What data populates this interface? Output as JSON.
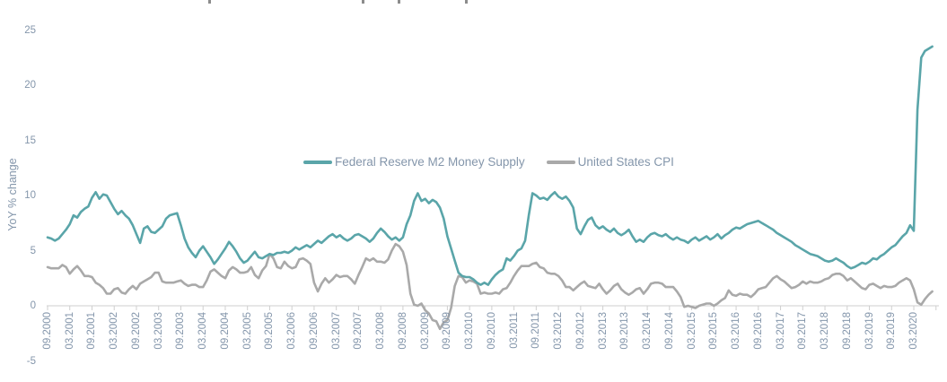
{
  "cropped_title_fragments_x": [
    232,
    403,
    443,
    518
  ],
  "colors": {
    "m2_line": "#5aa5a9",
    "cpi_line": "#a9a9a9",
    "axis_line": "#cfcfcf",
    "label_text": "#8496ab"
  },
  "chart_data": {
    "type": "line",
    "title": "",
    "xlabel": "",
    "ylabel": "YoY % change",
    "ylim": [
      -5,
      25
    ],
    "y_ticks": [
      25,
      20,
      15,
      10,
      5,
      0,
      -5
    ],
    "grid": false,
    "legend_position": "inside-center",
    "x_frequency": "monthly",
    "x_start": "09.2000",
    "x_end": "08.2020",
    "x_tick_every_months": 6,
    "x_tick_labels": [
      "09.2000",
      "03.2001",
      "09.2001",
      "03.2002",
      "09.2002",
      "03.2003",
      "09.2003",
      "03.2004",
      "09.2004",
      "03.2005",
      "09.2005",
      "03.2006",
      "09.2006",
      "03.2007",
      "09.2007",
      "03.2008",
      "09.2008",
      "03.2009",
      "09.2009",
      "03.2010",
      "09.2010",
      "03.2011",
      "09.2011",
      "03.2012",
      "09.2012",
      "03.2013",
      "09.2013",
      "03.2014",
      "09.2014",
      "03.2015",
      "09.2015",
      "03.2016",
      "09.2016",
      "03.2017",
      "09.2017",
      "03.2018",
      "09.2018",
      "03.2019",
      "09.2019",
      "03.2020"
    ],
    "series": [
      {
        "name": "Federal Reserve M2 Money Supply",
        "color": "#5aa5a9",
        "values": [
          6.2,
          6.1,
          5.9,
          6.1,
          6.5,
          6.9,
          7.4,
          8.2,
          8.0,
          8.5,
          8.8,
          9.0,
          9.8,
          10.3,
          9.7,
          10.1,
          10.0,
          9.4,
          8.8,
          8.3,
          8.6,
          8.2,
          7.9,
          7.3,
          6.5,
          5.7,
          7.0,
          7.2,
          6.7,
          6.6,
          6.9,
          7.2,
          7.9,
          8.2,
          8.3,
          8.4,
          7.3,
          6.1,
          5.3,
          4.8,
          4.4,
          5.0,
          5.4,
          4.9,
          4.4,
          3.8,
          4.2,
          4.7,
          5.2,
          5.8,
          5.4,
          4.9,
          4.3,
          3.9,
          4.1,
          4.5,
          4.9,
          4.4,
          4.3,
          4.5,
          4.7,
          4.6,
          4.8,
          4.8,
          4.9,
          4.8,
          5.0,
          5.3,
          5.1,
          5.3,
          5.5,
          5.3,
          5.6,
          5.9,
          5.7,
          6.0,
          6.3,
          6.5,
          6.2,
          6.4,
          6.1,
          5.9,
          6.1,
          6.4,
          6.5,
          6.3,
          6.1,
          5.8,
          6.1,
          6.6,
          7.0,
          6.7,
          6.3,
          6.0,
          6.2,
          5.9,
          6.2,
          7.4,
          8.2,
          9.5,
          10.2,
          9.5,
          9.7,
          9.3,
          9.6,
          9.4,
          8.9,
          7.9,
          6.3,
          5.2,
          4.1,
          3.0,
          2.7,
          2.6,
          2.6,
          2.4,
          2.1,
          1.9,
          2.1,
          1.9,
          2.4,
          2.8,
          3.1,
          3.3,
          4.3,
          4.1,
          4.5,
          5.0,
          5.2,
          5.9,
          8.2,
          10.2,
          10.0,
          9.7,
          9.8,
          9.6,
          10.0,
          10.3,
          9.9,
          9.7,
          9.9,
          9.5,
          8.9,
          7.0,
          6.5,
          7.2,
          7.8,
          8.0,
          7.3,
          7.0,
          7.2,
          6.9,
          6.7,
          7.0,
          6.6,
          6.4,
          6.6,
          6.9,
          6.3,
          5.8,
          6.0,
          5.8,
          6.2,
          6.5,
          6.6,
          6.4,
          6.3,
          6.5,
          6.2,
          6.0,
          6.2,
          6.0,
          5.9,
          5.7,
          6.0,
          6.2,
          5.9,
          6.1,
          6.3,
          6.0,
          6.2,
          6.5,
          6.1,
          6.4,
          6.6,
          6.9,
          7.1,
          7.0,
          7.2,
          7.4,
          7.5,
          7.6,
          7.7,
          7.5,
          7.3,
          7.1,
          6.9,
          6.6,
          6.4,
          6.2,
          6.0,
          5.8,
          5.5,
          5.3,
          5.1,
          4.9,
          4.7,
          4.6,
          4.5,
          4.3,
          4.1,
          4.0,
          4.1,
          4.3,
          4.1,
          3.9,
          3.6,
          3.4,
          3.5,
          3.7,
          3.9,
          3.8,
          4.0,
          4.3,
          4.2,
          4.5,
          4.7,
          5.0,
          5.3,
          5.5,
          5.9,
          6.3,
          6.6,
          7.3,
          6.8,
          17.8,
          22.5,
          23.1,
          23.3,
          23.5
        ]
      },
      {
        "name": "United States CPI",
        "color": "#a9a9a9",
        "values": [
          3.5,
          3.4,
          3.4,
          3.4,
          3.7,
          3.5,
          2.9,
          3.3,
          3.6,
          3.2,
          2.7,
          2.7,
          2.6,
          2.1,
          1.9,
          1.6,
          1.1,
          1.1,
          1.5,
          1.6,
          1.2,
          1.1,
          1.5,
          1.8,
          1.5,
          2.0,
          2.2,
          2.4,
          2.6,
          3.0,
          3.0,
          2.2,
          2.1,
          2.1,
          2.1,
          2.2,
          2.3,
          2.0,
          1.8,
          1.9,
          1.9,
          1.7,
          1.7,
          2.3,
          3.1,
          3.3,
          3.0,
          2.7,
          2.5,
          3.2,
          3.5,
          3.3,
          3.0,
          3.0,
          3.1,
          3.5,
          2.8,
          2.5,
          3.2,
          3.6,
          4.7,
          4.3,
          3.5,
          3.4,
          4.0,
          3.6,
          3.4,
          3.5,
          4.2,
          4.3,
          4.1,
          3.8,
          2.1,
          1.3,
          2.0,
          2.5,
          2.1,
          2.4,
          2.8,
          2.6,
          2.7,
          2.7,
          2.4,
          2.0,
          2.8,
          3.5,
          4.3,
          4.1,
          4.3,
          4.0,
          4.0,
          3.9,
          4.2,
          5.0,
          5.6,
          5.4,
          4.9,
          3.7,
          1.1,
          0.1,
          0.0,
          0.2,
          -0.4,
          -0.7,
          -1.3,
          -1.4,
          -2.1,
          -1.5,
          -1.3,
          -0.2,
          1.8,
          2.7,
          2.6,
          2.1,
          2.3,
          2.2,
          2.0,
          1.1,
          1.2,
          1.1,
          1.1,
          1.2,
          1.1,
          1.5,
          1.6,
          2.1,
          2.7,
          3.2,
          3.6,
          3.6,
          3.6,
          3.8,
          3.9,
          3.5,
          3.4,
          3.0,
          2.9,
          2.9,
          2.7,
          2.3,
          1.7,
          1.7,
          1.4,
          1.7,
          2.0,
          2.2,
          1.8,
          1.7,
          1.6,
          2.0,
          1.5,
          1.1,
          1.4,
          1.8,
          2.0,
          1.5,
          1.2,
          1.0,
          1.2,
          1.5,
          1.6,
          1.1,
          1.5,
          2.0,
          2.1,
          2.1,
          2.0,
          1.7,
          1.7,
          1.7,
          1.3,
          0.8,
          -0.1,
          0.0,
          -0.1,
          -0.2,
          0.0,
          0.1,
          0.2,
          0.2,
          0.0,
          0.2,
          0.5,
          0.7,
          1.4,
          1.0,
          0.9,
          1.1,
          1.0,
          1.0,
          0.8,
          1.1,
          1.5,
          1.6,
          1.7,
          2.1,
          2.5,
          2.7,
          2.4,
          2.2,
          1.9,
          1.6,
          1.7,
          1.9,
          2.2,
          2.0,
          2.2,
          2.1,
          2.1,
          2.2,
          2.4,
          2.5,
          2.8,
          2.9,
          2.9,
          2.7,
          2.3,
          2.5,
          2.2,
          1.9,
          1.6,
          1.5,
          1.9,
          2.0,
          1.8,
          1.6,
          1.8,
          1.7,
          1.7,
          1.8,
          2.1,
          2.3,
          2.5,
          2.3,
          1.5,
          0.3,
          0.1,
          0.6,
          1.0,
          1.3
        ]
      }
    ]
  }
}
